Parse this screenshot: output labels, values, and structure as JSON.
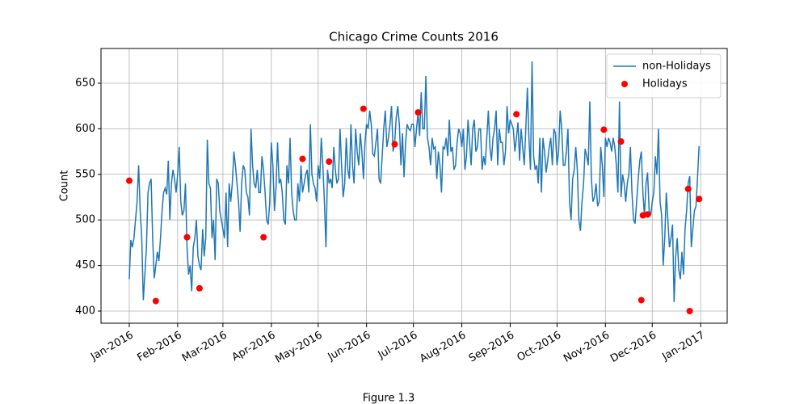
{
  "chart_data": {
    "type": "line",
    "title": "Chicago Crime Counts 2016",
    "ylabel": "Count",
    "xlim": [
      -18.1,
      383.0
    ],
    "ylim": [
      386.7,
      688.1
    ],
    "xticks": [
      {
        "value": 0,
        "label": "Jan-2016"
      },
      {
        "value": 31,
        "label": "Feb-2016"
      },
      {
        "value": 60,
        "label": "Mar-2016"
      },
      {
        "value": 91,
        "label": "Apr-2016"
      },
      {
        "value": 121,
        "label": "May-2016"
      },
      {
        "value": 152,
        "label": "Jun-2016"
      },
      {
        "value": 182,
        "label": "Jul-2016"
      },
      {
        "value": 213,
        "label": "Aug-2016"
      },
      {
        "value": 244,
        "label": "Sep-2016"
      },
      {
        "value": 274,
        "label": "Oct-2016"
      },
      {
        "value": 305,
        "label": "Nov-2016"
      },
      {
        "value": 335,
        "label": "Dec-2016"
      },
      {
        "value": 366,
        "label": "Jan-2017"
      }
    ],
    "yticks": [
      400,
      450,
      500,
      550,
      600,
      650
    ],
    "grid": true,
    "legend": "upper right",
    "series": [
      {
        "name": "non-Holidays",
        "type": "line",
        "color": "#1f77b4",
        "x": [
          0,
          1,
          2,
          3,
          4,
          5,
          6,
          7,
          8,
          9,
          10,
          11,
          12,
          13,
          14,
          15,
          16,
          17,
          18,
          19,
          20,
          21,
          22,
          23,
          24,
          25,
          26,
          27,
          28,
          29,
          30,
          31,
          32,
          33,
          34,
          35,
          36,
          37,
          38,
          39,
          40,
          41,
          42,
          43,
          44,
          45,
          46,
          47,
          48,
          49,
          50,
          51,
          52,
          53,
          54,
          55,
          56,
          57,
          58,
          59,
          60,
          61,
          62,
          63,
          64,
          65,
          66,
          67,
          68,
          69,
          70,
          71,
          72,
          73,
          74,
          75,
          76,
          77,
          78,
          79,
          80,
          81,
          82,
          83,
          84,
          85,
          86,
          87,
          88,
          89,
          90,
          91,
          92,
          93,
          94,
          95,
          96,
          97,
          98,
          99,
          100,
          101,
          102,
          103,
          104,
          105,
          106,
          107,
          108,
          109,
          110,
          111,
          112,
          113,
          114,
          115,
          116,
          117,
          118,
          119,
          120,
          121,
          122,
          123,
          124,
          125,
          126,
          127,
          128,
          129,
          130,
          131,
          132,
          133,
          134,
          135,
          136,
          137,
          138,
          139,
          140,
          141,
          142,
          143,
          144,
          145,
          146,
          147,
          148,
          149,
          150,
          151,
          152,
          153,
          154,
          155,
          156,
          157,
          158,
          159,
          160,
          161,
          162,
          163,
          164,
          165,
          166,
          167,
          168,
          169,
          170,
          171,
          172,
          173,
          174,
          175,
          176,
          177,
          178,
          179,
          180,
          181,
          182,
          183,
          184,
          185,
          186,
          187,
          188,
          189,
          190,
          191,
          192,
          193,
          194,
          195,
          196,
          197,
          198,
          199,
          200,
          201,
          202,
          203,
          204,
          205,
          206,
          207,
          208,
          209,
          210,
          211,
          212,
          213,
          214,
          215,
          216,
          217,
          218,
          219,
          220,
          221,
          222,
          223,
          224,
          225,
          226,
          227,
          228,
          229,
          230,
          231,
          232,
          233,
          234,
          235,
          236,
          237,
          238,
          239,
          240,
          241,
          242,
          243,
          244,
          245,
          246,
          247,
          248,
          249,
          250,
          251,
          252,
          253,
          254,
          255,
          256,
          257,
          258,
          259,
          260,
          261,
          262,
          263,
          264,
          265,
          266,
          267,
          268,
          269,
          270,
          271,
          272,
          273,
          274,
          275,
          276,
          277,
          278,
          279,
          280,
          281,
          282,
          283,
          284,
          285,
          286,
          287,
          288,
          289,
          290,
          291,
          292,
          293,
          294,
          295,
          296,
          297,
          298,
          299,
          300,
          301,
          302,
          303,
          304,
          305,
          306,
          307,
          308,
          309,
          310,
          311,
          312,
          313,
          314,
          315,
          316,
          317,
          318,
          319,
          320,
          321,
          322,
          323,
          324,
          325,
          326,
          327,
          328,
          329,
          330,
          331,
          332,
          333,
          334,
          335,
          336,
          337,
          338,
          339,
          340,
          341,
          342,
          343,
          344,
          345,
          346,
          347,
          348,
          349,
          350,
          351,
          352,
          353,
          354,
          355,
          356,
          357,
          358,
          359,
          360,
          361,
          362,
          363,
          364,
          365
        ],
        "values": [
          435,
          478,
          470,
          480,
          500,
          520,
          560,
          510,
          480,
          412,
          440,
          470,
          530,
          540,
          545,
          480,
          436,
          450,
          465,
          455,
          480,
          510,
          530,
          535,
          528,
          565,
          500,
          540,
          555,
          545,
          530,
          550,
          580,
          520,
          505,
          510,
          540,
          470,
          440,
          450,
          422,
          470,
          480,
          500,
          460,
          450,
          445,
          490,
          460,
          480,
          588,
          540,
          535,
          480,
          500,
          456,
          545,
          540,
          510,
          500,
          490,
          480,
          530,
          470,
          540,
          520,
          540,
          575,
          560,
          540,
          520,
          487,
          540,
          560,
          555,
          530,
          525,
          505,
          600,
          560,
          540,
          535,
          555,
          530,
          530,
          570,
          555,
          530,
          500,
          495,
          520,
          585,
          560,
          510,
          535,
          585,
          540,
          545,
          530,
          500,
          495,
          560,
          540,
          590,
          530,
          510,
          500,
          500,
          540,
          520,
          560,
          530,
          540,
          550,
          555,
          530,
          605,
          550,
          540,
          535,
          520,
          560,
          545,
          590,
          560,
          520,
          470,
          555,
          540,
          545,
          535,
          580,
          555,
          540,
          545,
          600,
          560,
          525,
          540,
          590,
          555,
          545,
          605,
          560,
          540,
          600,
          575,
          560,
          595,
          575,
          545,
          585,
          605,
          600,
          620,
          605,
          572,
          570,
          585,
          600,
          545,
          540,
          570,
          600,
          620,
          580,
          590,
          605,
          625,
          575,
          585,
          612,
          625,
          605,
          560,
          595,
          547,
          585,
          605,
          600,
          598,
          605,
          605,
          580,
          600,
          617,
          592,
          640,
          600,
          600,
          658,
          590,
          580,
          560,
          590,
          578,
          580,
          545,
          575,
          560,
          530,
          580,
          578,
          590,
          570,
          610,
          575,
          580,
          555,
          560,
          585,
          600,
          595,
          580,
          600,
          555,
          570,
          610,
          585,
          560,
          600,
          610,
          575,
          580,
          600,
          600,
          555,
          570,
          560,
          590,
          620,
          580,
          565,
          590,
          600,
          620,
          560,
          600,
          585,
          585,
          560,
          575,
          625,
          595,
          610,
          605,
          600,
          575,
          590,
          607,
          565,
          600,
          580,
          560,
          600,
          645,
          590,
          555,
          674,
          570,
          555,
          560,
          540,
          590,
          530,
          590,
          575,
          552,
          565,
          580,
          590,
          560,
          600,
          595,
          560,
          575,
          620,
          600,
          560,
          560,
          575,
          600,
          520,
          500,
          545,
          555,
          580,
          555,
          500,
          488,
          520,
          540,
          578,
          570,
          560,
          630,
          545,
          520,
          525,
          540,
          515,
          520,
          580,
          560,
          525,
          590,
          580,
          590,
          585,
          575,
          590,
          580,
          560,
          530,
          630,
          525,
          550,
          540,
          520,
          540,
          550,
          580,
          530,
          500,
          496,
          520,
          545,
          565,
          575,
          530,
          505,
          540,
          552,
          510,
          505,
          520,
          530,
          570,
          550,
          600,
          520,
          505,
          450,
          480,
          530,
          500,
          470,
          480,
          495,
          410,
          460,
          480,
          445,
          435,
          465,
          440,
          490,
          510,
          540,
          548,
          470,
          490,
          510,
          515,
          547,
          581
        ]
      },
      {
        "name": "Holidays",
        "type": "scatter",
        "color": "#ff0000",
        "x": [
          0,
          17,
          37,
          45,
          86,
          111,
          128,
          150,
          170,
          185,
          248,
          304,
          315,
          328,
          329,
          332,
          358,
          359,
          365
        ],
        "values": [
          543,
          411,
          481,
          425,
          481,
          567,
          564,
          622,
          583,
          618,
          616,
          599,
          586,
          412,
          505,
          506,
          534,
          400,
          523
        ]
      }
    ]
  },
  "caption": "Figure 1.3"
}
